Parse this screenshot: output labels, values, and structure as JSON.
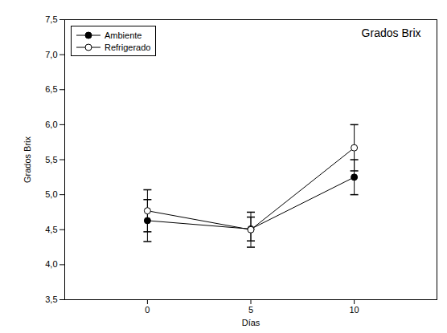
{
  "chart_data": {
    "type": "line",
    "title": "Grados Brix",
    "x_label": "Días",
    "y_label": "Grados Brix",
    "x": [
      0,
      5,
      10
    ],
    "series": [
      {
        "name": "Ambiente",
        "color": "#000000",
        "marker": "circle",
        "values": [
          4.63,
          4.51,
          5.25
        ],
        "errors": [
          0.3,
          0.17,
          0.25
        ]
      },
      {
        "name": "Refrigerado",
        "color": "#000000",
        "marker": "open circle",
        "values": [
          4.77,
          4.5,
          5.67
        ],
        "errors": [
          0.3,
          0.25,
          0.33
        ]
      }
    ],
    "xlim": [
      -4,
      14
    ],
    "xticks": [
      0,
      5,
      10
    ],
    "ylim": [
      3.5,
      7.5
    ],
    "yticks": [
      {
        "value": 3.5,
        "label": "3,5"
      },
      {
        "value": 4.0,
        "label": "4,0"
      },
      {
        "value": 4.5,
        "label": "4,5"
      },
      {
        "value": 5.0,
        "label": "5,0"
      },
      {
        "value": 5.5,
        "label": "5,5"
      },
      {
        "value": 6.0,
        "label": "6,0"
      },
      {
        "value": 6.5,
        "label": "6,5"
      },
      {
        "value": 7.0,
        "label": "7,0"
      },
      {
        "value": 7.5,
        "label": "7,5"
      }
    ],
    "legend": "upper left",
    "grid": false
  }
}
